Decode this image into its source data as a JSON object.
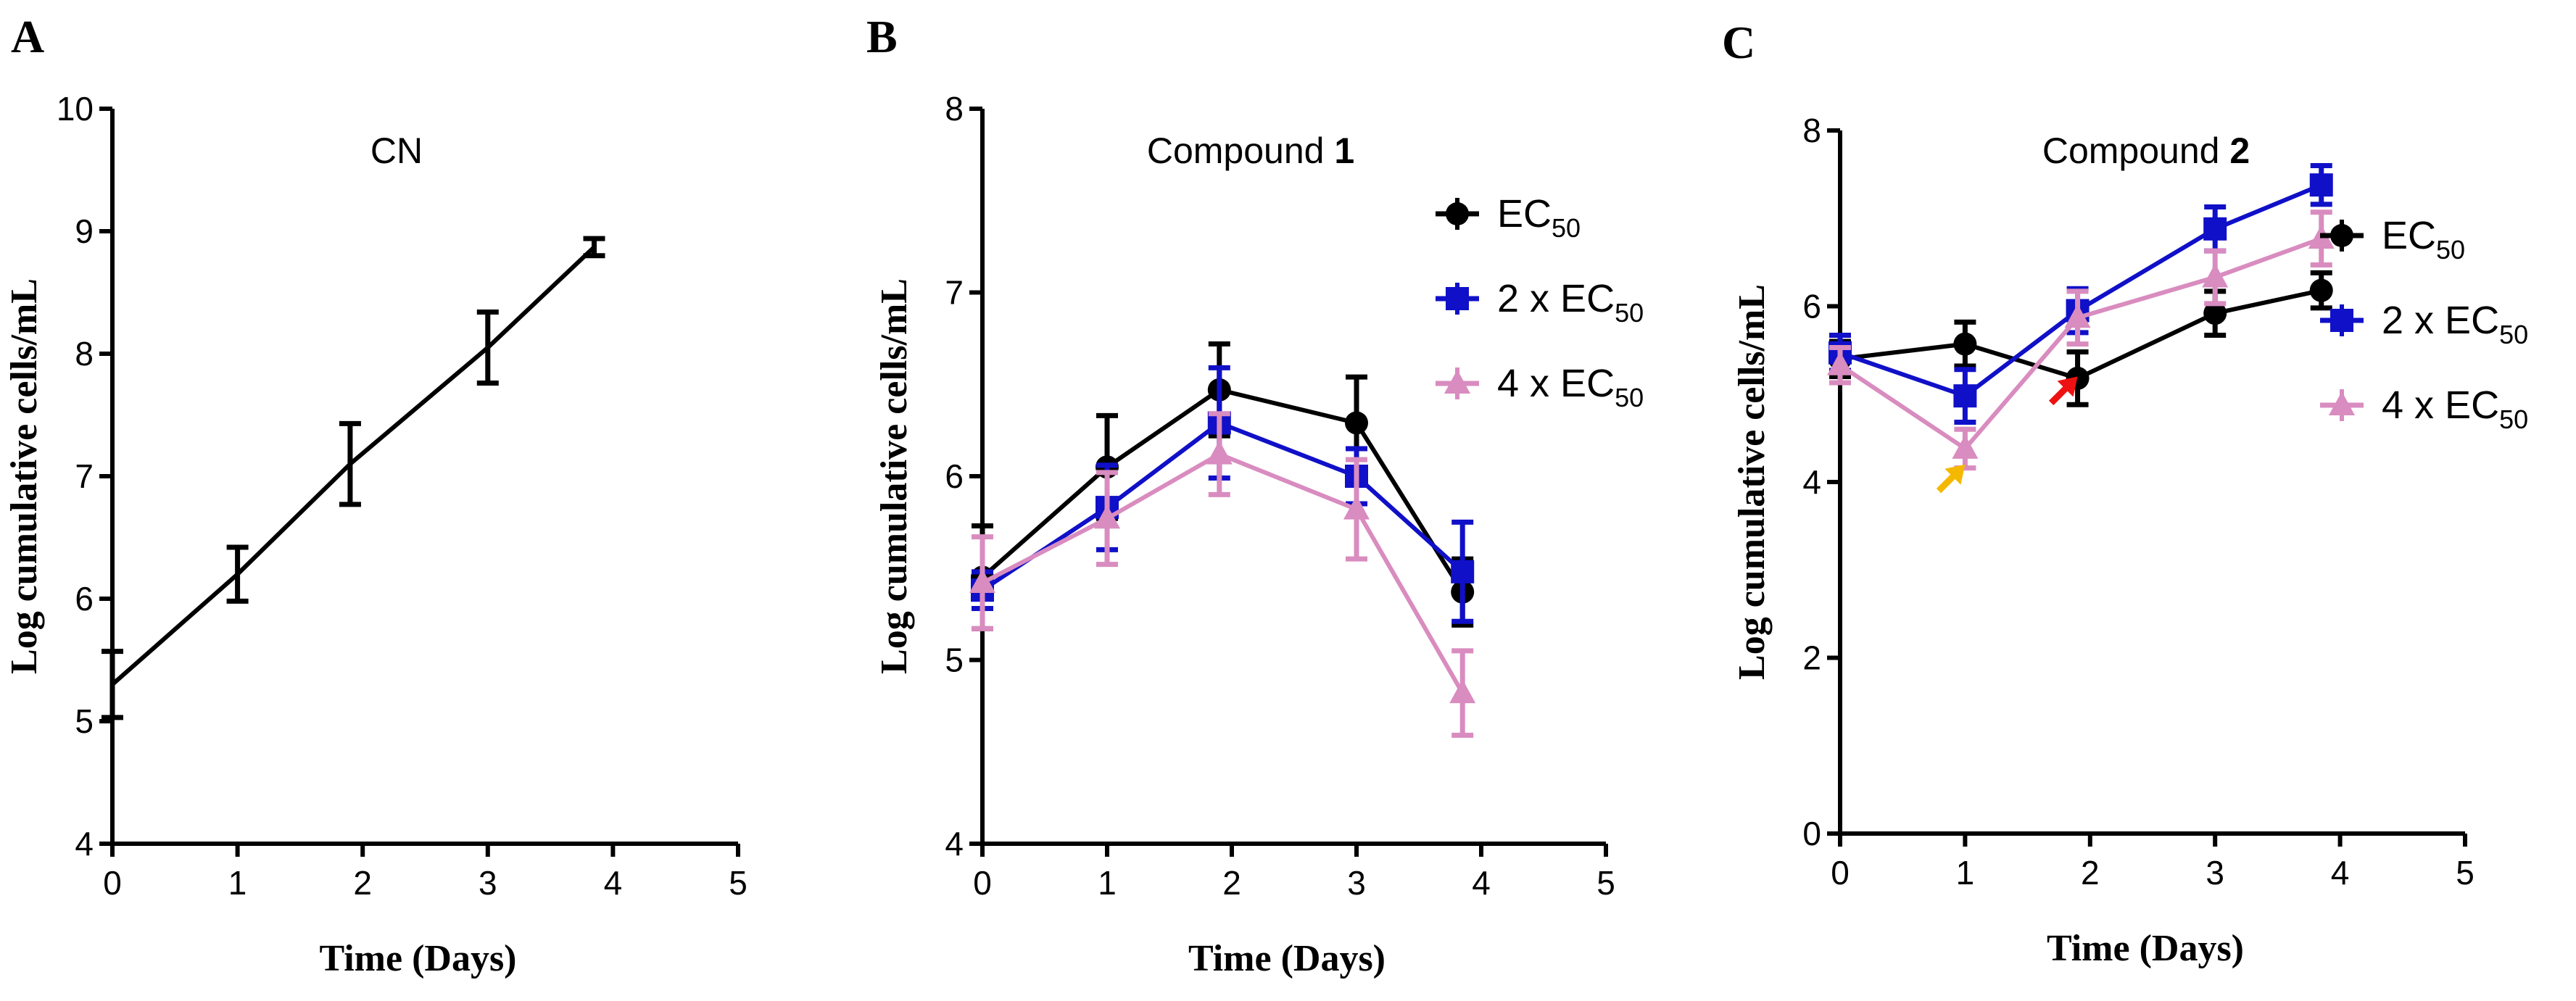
{
  "chart_data": [
    {
      "panel": "A",
      "type": "line",
      "title": "CN",
      "title_bold": "",
      "xlabel": "Time (Days)",
      "ylabel": "Log cumulative cells/mL",
      "xlim": [
        0,
        5
      ],
      "ylim": [
        4,
        10
      ],
      "xticks": [
        0,
        1,
        2,
        3,
        4,
        5
      ],
      "yticks": [
        4,
        5,
        6,
        7,
        8,
        9,
        10
      ],
      "series": [
        {
          "name": "CN",
          "color": "#000000",
          "marker": "none",
          "x": [
            0,
            1,
            1.9,
            3,
            3.85
          ],
          "y": [
            5.3,
            6.2,
            7.1,
            8.05,
            8.87
          ],
          "err": [
            0.27,
            0.22,
            0.33,
            0.29,
            0.07
          ]
        }
      ],
      "legend": []
    },
    {
      "panel": "B",
      "type": "line",
      "title": "Compound ",
      "title_bold": "1",
      "xlabel": "Time (Days)",
      "ylabel": "Log cumulative cells/mL",
      "xlim": [
        0,
        5
      ],
      "ylim": [
        4,
        8
      ],
      "xticks": [
        0,
        1,
        2,
        3,
        4,
        5
      ],
      "yticks": [
        4,
        5,
        6,
        7,
        8
      ],
      "series": [
        {
          "name": "EC50",
          "color": "#000000",
          "marker": "diamond",
          "x": [
            0,
            1,
            1.9,
            3,
            3.85
          ],
          "y": [
            5.45,
            6.05,
            6.47,
            6.29,
            5.37
          ],
          "err": [
            0.28,
            0.28,
            0.25,
            0.25,
            0.18
          ]
        },
        {
          "name": "2 x EC50",
          "color": "#1010c8",
          "marker": "square",
          "x": [
            0,
            1,
            1.9,
            3,
            3.85
          ],
          "y": [
            5.38,
            5.83,
            6.29,
            6.0,
            5.48
          ],
          "err": [
            0.1,
            0.23,
            0.3,
            0.15,
            0.27
          ]
        },
        {
          "name": "4 x EC50",
          "color": "#d98cbf",
          "marker": "triangle",
          "x": [
            0,
            1,
            1.9,
            3,
            3.85
          ],
          "y": [
            5.42,
            5.77,
            6.12,
            5.82,
            4.82
          ],
          "err": [
            0.25,
            0.25,
            0.22,
            0.27,
            0.23
          ]
        }
      ],
      "legend": [
        {
          "base": "EC",
          "sub": "50",
          "prefix": "",
          "color": "#000000",
          "marker": "diamond"
        },
        {
          "base": "EC",
          "sub": "50",
          "prefix": "2 x ",
          "color": "#1010c8",
          "marker": "square"
        },
        {
          "base": "EC",
          "sub": "50",
          "prefix": "4 x ",
          "color": "#d98cbf",
          "marker": "triangle"
        }
      ]
    },
    {
      "panel": "C",
      "type": "line",
      "title": "Compound ",
      "title_bold": "2",
      "xlabel": "Time (Days)",
      "ylabel": "Log cumulative cells/mL",
      "xlim": [
        0,
        5
      ],
      "ylim": [
        0,
        8
      ],
      "xticks": [
        0,
        1,
        2,
        3,
        4,
        5
      ],
      "yticks": [
        0,
        2,
        4,
        6,
        8
      ],
      "series": [
        {
          "name": "EC50",
          "color": "#000000",
          "marker": "diamond",
          "x": [
            0,
            1,
            1.9,
            3,
            3.85
          ],
          "y": [
            5.4,
            5.57,
            5.18,
            5.92,
            6.18
          ],
          "err": [
            0.2,
            0.25,
            0.3,
            0.25,
            0.2
          ]
        },
        {
          "name": "2 x EC50",
          "color": "#1010c8",
          "marker": "square",
          "x": [
            0,
            1,
            1.9,
            3,
            3.85
          ],
          "y": [
            5.47,
            4.98,
            5.95,
            6.88,
            7.38
          ],
          "err": [
            0.2,
            0.3,
            0.25,
            0.25,
            0.22
          ]
        },
        {
          "name": "4 x EC50",
          "color": "#d98cbf",
          "marker": "triangle",
          "x": [
            0,
            1,
            1.9,
            3,
            3.85
          ],
          "y": [
            5.33,
            4.38,
            5.87,
            6.33,
            6.77
          ],
          "err": [
            0.2,
            0.22,
            0.3,
            0.3,
            0.3
          ]
        }
      ],
      "legend": [
        {
          "base": "EC",
          "sub": "50",
          "prefix": "",
          "color": "#000000",
          "marker": "diamond"
        },
        {
          "base": "EC",
          "sub": "50",
          "prefix": "2 x ",
          "color": "#1010c8",
          "marker": "square"
        },
        {
          "base": "EC",
          "sub": "50",
          "prefix": "4 x ",
          "color": "#d98cbf",
          "marker": "triangle"
        }
      ],
      "annotations": [
        {
          "type": "arrow",
          "color": "#f5b800",
          "points_to": [
            1,
            4.2
          ]
        },
        {
          "type": "arrow",
          "color": "#ee1111",
          "points_to": [
            1.9,
            5.2
          ]
        }
      ]
    }
  ]
}
